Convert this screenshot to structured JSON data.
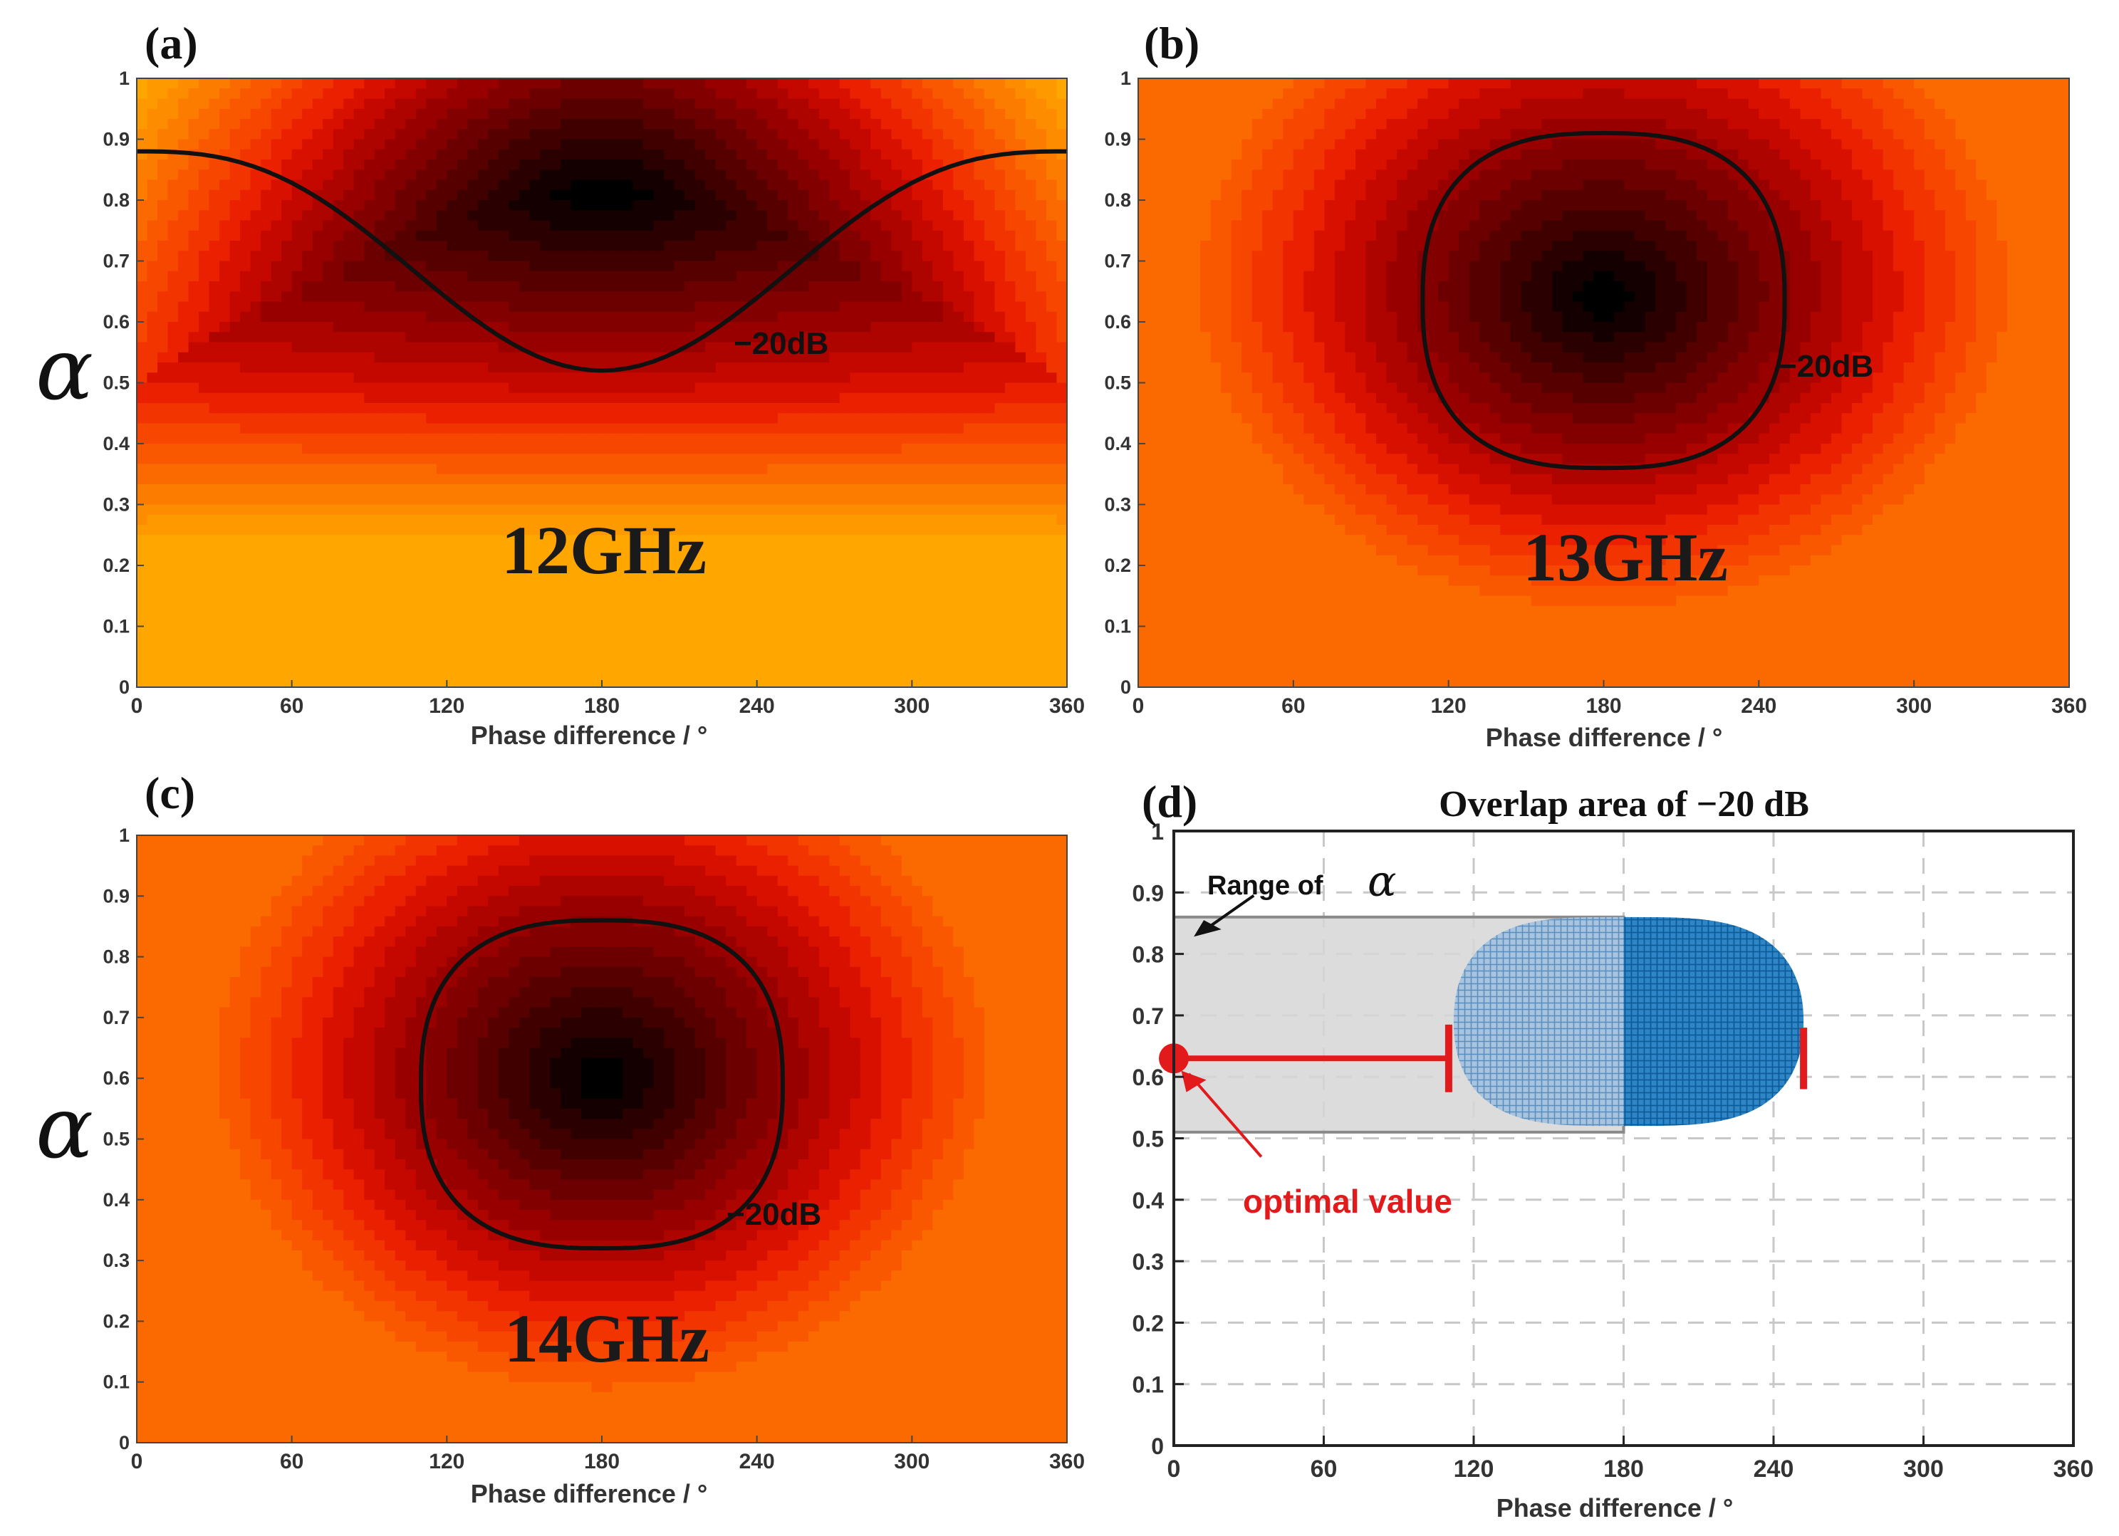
{
  "figure": {
    "alpha_symbol": "α"
  },
  "chart_data": [
    {
      "type": "heatmap",
      "panel_label": "(a)",
      "frequency_label": "12GHz",
      "xlabel": "Phase difference / °",
      "ylabel": "α",
      "xlim": [
        0,
        360
      ],
      "ylim": [
        0,
        1
      ],
      "xticks": [
        "0",
        "60",
        "120",
        "180",
        "240",
        "300",
        "360"
      ],
      "yticks": [
        "0",
        "0.1",
        "0.2",
        "0.3",
        "0.4",
        "0.5",
        "0.6",
        "0.7",
        "0.8",
        "0.9",
        "1"
      ],
      "minimum": {
        "phase": 180,
        "alpha": 0.8
      },
      "contour_label": "−20dB",
      "contour_20dB": {
        "shape": "curve",
        "alpha_at_0_and_360": 0.88,
        "alpha_at_180": 0.52
      }
    },
    {
      "type": "heatmap",
      "panel_label": "(b)",
      "frequency_label": "13GHz",
      "xlabel": "Phase difference / °",
      "ylabel": "α",
      "xlim": [
        0,
        360
      ],
      "ylim": [
        0,
        1
      ],
      "xticks": [
        "0",
        "60",
        "120",
        "180",
        "240",
        "300",
        "360"
      ],
      "yticks": [
        "0",
        "0.1",
        "0.2",
        "0.3",
        "0.4",
        "0.5",
        "0.6",
        "0.7",
        "0.8",
        "0.9",
        "1"
      ],
      "minimum": {
        "phase": 180,
        "alpha": 0.65
      },
      "contour_label": "−20dB",
      "contour_20dB": {
        "shape": "closed",
        "phase_range": [
          110,
          250
        ],
        "alpha_range": [
          0.36,
          0.91
        ]
      }
    },
    {
      "type": "heatmap",
      "panel_label": "(c)",
      "frequency_label": "14GHz",
      "xlabel": "Phase difference / °",
      "ylabel": "α",
      "xlim": [
        0,
        360
      ],
      "ylim": [
        0,
        1
      ],
      "xticks": [
        "0",
        "60",
        "120",
        "180",
        "240",
        "300",
        "360"
      ],
      "yticks": [
        "0",
        "0.1",
        "0.2",
        "0.3",
        "0.4",
        "0.5",
        "0.6",
        "0.7",
        "0.8",
        "0.9",
        "1"
      ],
      "minimum": {
        "phase": 180,
        "alpha": 0.6
      },
      "contour_label": "−20dB",
      "contour_20dB": {
        "shape": "closed",
        "phase_range": [
          110,
          250
        ],
        "alpha_range": [
          0.32,
          0.86
        ]
      }
    },
    {
      "type": "scatter",
      "panel_label": "(d)",
      "title": "Overlap area of −20 dB",
      "xlabel": "Phase difference / °",
      "ylabel": "",
      "xlim": [
        0,
        360
      ],
      "ylim": [
        0,
        1
      ],
      "xticks": [
        "0",
        "60",
        "120",
        "180",
        "240",
        "300",
        "360"
      ],
      "yticks": [
        "0",
        "0.1",
        "0.2",
        "0.3",
        "0.4",
        "0.5",
        "0.6",
        "0.7",
        "0.8",
        "0.9",
        "1"
      ],
      "grid": true,
      "range_label": "Range of",
      "alpha_range": [
        0.51,
        0.86
      ],
      "overlap_region": {
        "phase_range": [
          112,
          252
        ],
        "alpha_range": [
          0.52,
          0.86
        ],
        "split_phase": 180
      },
      "optimal_label": "optimal  value",
      "optimal_point": {
        "phase": 0,
        "alpha": 0.63
      },
      "optimal_bar_end_phase": 110,
      "right_marker_phase": 252
    }
  ]
}
